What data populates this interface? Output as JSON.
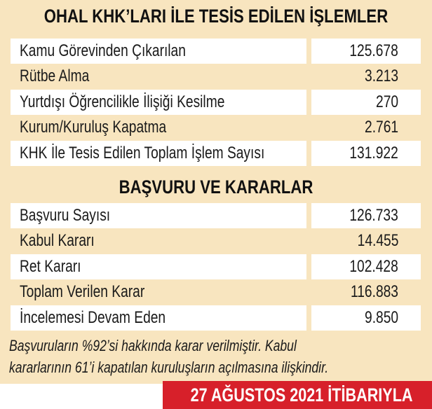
{
  "section1": {
    "title": "OHAL KHK’LARI İLE TESİS EDİLEN İŞLEMLER",
    "rows": [
      {
        "label": "Kamu Görevinden Çıkarılan",
        "value": "125.678"
      },
      {
        "label": "Rütbe Alma",
        "value": "3.213"
      },
      {
        "label": "Yurtdışı Öğrencilikle İlişiği Kesilme",
        "value": "270"
      },
      {
        "label": "Kurum/Kuruluş Kapatma",
        "value": "2.761"
      },
      {
        "label": "KHK İle Tesis Edilen Toplam İşlem Sayısı",
        "value": "131.922"
      }
    ]
  },
  "section2": {
    "title": "BAŞVURU VE KARARLAR",
    "rows": [
      {
        "label": "Başvuru Sayısı",
        "value": "126.733"
      },
      {
        "label": "Kabul Kararı",
        "value": "14.455"
      },
      {
        "label": "Ret Kararı",
        "value": "102.428"
      },
      {
        "label": "Toplam Verilen Karar",
        "value": "116.883"
      },
      {
        "label": "İncelemesi Devam Eden",
        "value": "9.850"
      }
    ]
  },
  "note": {
    "line1": "Başvuruların %92’si hakkında karar verilmiştir. Kabul",
    "line2": "kararlarının 61’i kapatılan kuruluşların açılmasına ilişkindir."
  },
  "date_banner": "27 AĞUSTOS 2021 İTİBARIYLA",
  "colors": {
    "background": "#f8e5bf",
    "row_highlight": "#ffffff",
    "banner": "#d7202a"
  }
}
